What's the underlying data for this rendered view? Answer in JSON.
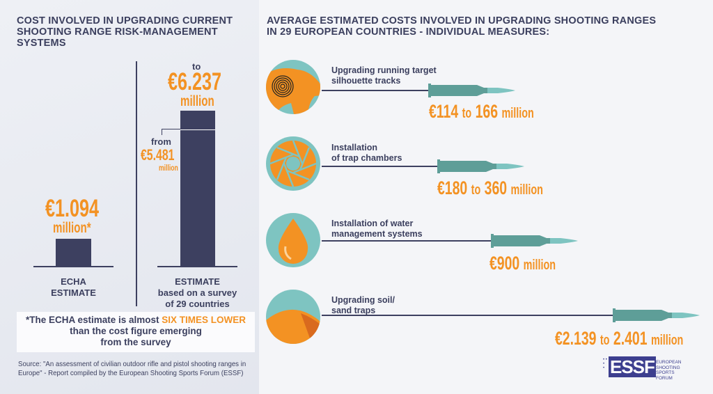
{
  "left": {
    "title": [
      "COST INVOLVED IN UPGRADING CURRENT",
      "SHOOTING RANGE RISK-MANAGEMENT",
      "SYSTEMS"
    ],
    "to_label": "to",
    "to_value": "€6.237",
    "to_unit": "million",
    "from_label": "from",
    "from_value": "€5.481",
    "from_unit": "million",
    "echa_value": "€1.094",
    "echa_unit": "million*",
    "echa_label": [
      "ECHA",
      "ESTIMATE"
    ],
    "survey_label": [
      "ESTIMATE",
      "based on a survey",
      "of 29 countries"
    ],
    "note_pre": "*The ECHA estimate is almost ",
    "note_highlight": "SIX TIMES LOWER",
    "note_rest": [
      "than the cost figure emerging",
      "from the survey"
    ],
    "source": [
      "Source: \"An assessment of civilian outdoor rifle and pistol shooting ranges in",
      "Europe\" -  Report compiled by the European Shooting Sports Forum (ESSF)"
    ]
  },
  "chart_data": {
    "type": "bar",
    "title": "COST INVOLVED IN UPGRADING CURRENT SHOOTING RANGE RISK-MANAGEMENT SYSTEMS",
    "unit": "€ million",
    "categories": [
      "ECHA ESTIMATE",
      "ESTIMATE based on a survey of 29 countries"
    ],
    "values": [
      1.094,
      6.237
    ],
    "range_low": [
      null,
      5.481
    ]
  },
  "right": {
    "title": [
      "AVERAGE ESTIMATED COSTS INVOLVED IN UPGRADING SHOOTING RANGES",
      "IN 29 EUROPEAN COUNTRIES - INDIVIDUAL MEASURES:"
    ],
    "measures": [
      {
        "label": [
          "Upgrading running target",
          "silhouette tracks"
        ],
        "from": "€114",
        "to_word": "to",
        "to": "166",
        "unit": "million",
        "icon": "boar-target-icon"
      },
      {
        "label": [
          "Installation",
          "of trap chambers"
        ],
        "from": "€180",
        "to_word": "to",
        "to": "360",
        "unit": "million",
        "icon": "trap-chamber-icon"
      },
      {
        "label": [
          "Installation of water",
          "management systems"
        ],
        "from": "€900",
        "to_word": "",
        "to": "",
        "unit": "million",
        "icon": "water-drop-icon"
      },
      {
        "label": [
          "Upgrading soil/",
          "sand traps"
        ],
        "from": "€2.139",
        "to_word": "to",
        "to": "2.401",
        "unit": "million",
        "icon": "sand-trap-icon"
      }
    ]
  },
  "logo": {
    "text": "ESSF",
    "sub": [
      "EUROPEAN",
      "SHOOTING SPORTS",
      "FORUM"
    ]
  },
  "colors": {
    "navy": "#3b3f5e",
    "orange": "#f39223",
    "teal": "#7ec4c1",
    "bullet": "#5e9e98"
  }
}
